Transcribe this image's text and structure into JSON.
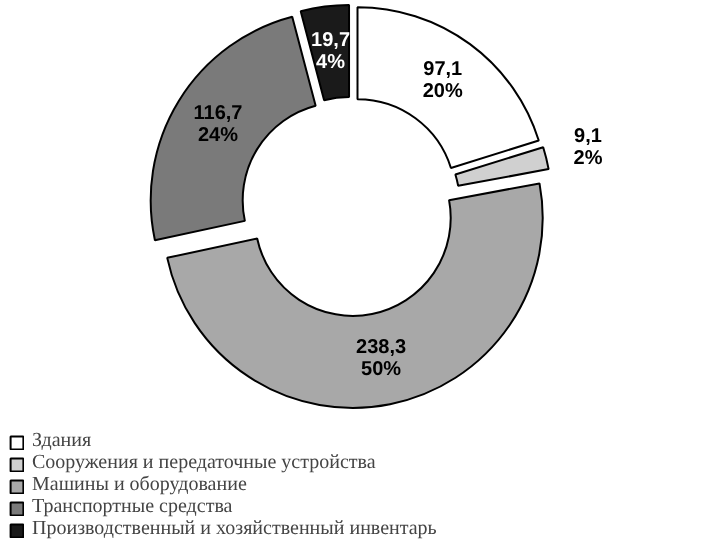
{
  "chart_data": {
    "type": "donut",
    "categories": [
      "Здания",
      "Сооружения и передаточные устройства",
      "Машины и оборудование",
      "Транспортные средства",
      "Производственный и хозяйственный инвентарь"
    ],
    "values": [
      97.1,
      9.1,
      238.3,
      116.7,
      19.7
    ],
    "colors": [
      "#ffffff",
      "#d0d0d0",
      "#a8a8a8",
      "#7a7a7a",
      "#1a1a1a"
    ],
    "value_labels": [
      "97,1\n20%",
      "9,1\n2%",
      "238,3\n50%",
      "116,7\n24%",
      "19,7\n4%"
    ],
    "legend": "bottom left"
  }
}
